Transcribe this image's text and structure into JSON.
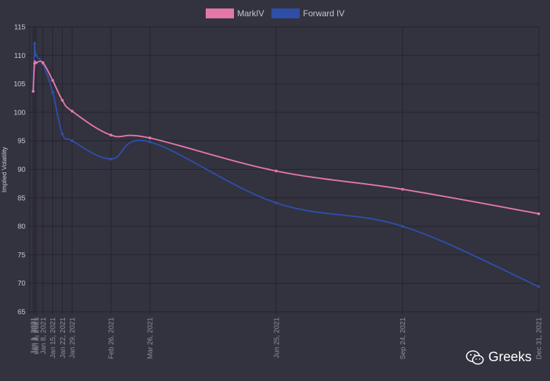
{
  "chart_data": {
    "type": "line",
    "title": "",
    "xlabel": "",
    "ylabel": "Implied Volatility",
    "ylim": [
      65,
      115
    ],
    "yticks": [
      65,
      70,
      75,
      80,
      85,
      90,
      95,
      100,
      105,
      110,
      115
    ],
    "grid": true,
    "legend_position": "top-center",
    "x": [
      "Jan 1, 2021",
      "Jan 2, 2021",
      "Jan 3, 2021",
      "Jan 8, 2021",
      "Jan 15, 2021",
      "Jan 22, 2021",
      "Jan 29, 2021",
      "Feb 26, 2021",
      "Mar 26, 2021",
      "Jun 25, 2021",
      "Sep 24, 2021",
      "Dec 31, 2021"
    ],
    "series": [
      {
        "name": "MarkIV",
        "color": "#e377a8",
        "values": [
          103.7,
          108.6,
          108.7,
          108.7,
          105.6,
          102.1,
          100.2,
          96.0,
          95.5,
          89.7,
          86.5,
          82.2
        ]
      },
      {
        "name": "Forward IV",
        "color": "#2f4ea8",
        "values": [
          103.7,
          112.0,
          110.0,
          108.5,
          103.5,
          96.2,
          95.0,
          91.8,
          94.8,
          84.1,
          80.0,
          69.4
        ]
      }
    ]
  },
  "watermark": {
    "text": "Greeks",
    "icon": "wechat-icon"
  }
}
